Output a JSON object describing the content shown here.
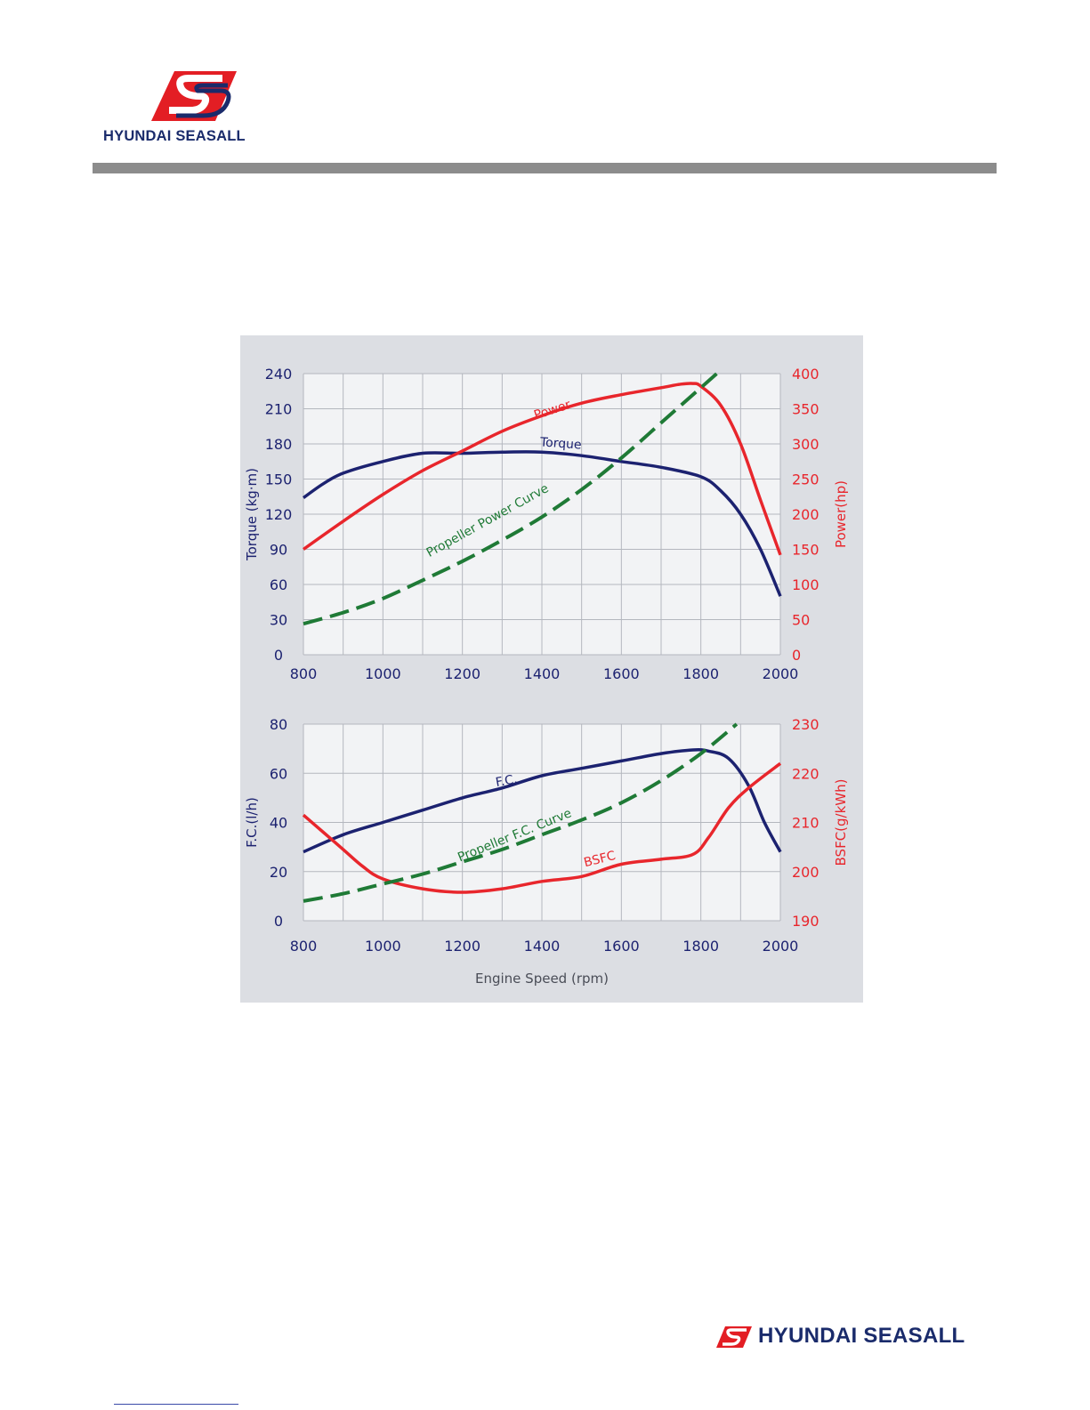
{
  "brand": {
    "name": "HYUNDAI SEASALL",
    "logo_icon": "s-wave-logo-icon",
    "colors": {
      "red": "#e31e24",
      "navy": "#1a2b6b",
      "rule_gray": "#8c8c8c"
    }
  },
  "chart_data": [
    {
      "type": "line",
      "title": "",
      "xlabel": "",
      "ylabel": "Torque (kg·m)",
      "y2label": "Power(hp)",
      "xlim": [
        800,
        2000
      ],
      "ylim": [
        0,
        240
      ],
      "y2lim": [
        0,
        400
      ],
      "x_ticks": [
        "800",
        "1000",
        "1200",
        "1400",
        "1600",
        "1800",
        "2000"
      ],
      "y_ticks": [
        "0",
        "30",
        "60",
        "90",
        "120",
        "150",
        "180",
        "210",
        "240"
      ],
      "y2_ticks": [
        "0",
        "50",
        "100",
        "150",
        "200",
        "250",
        "300",
        "350",
        "400"
      ],
      "grid": true,
      "series": [
        {
          "name": "Torque",
          "axis": "left",
          "color": "#1c2270",
          "dash": false,
          "x": [
            800,
            850,
            900,
            1000,
            1100,
            1200,
            1300,
            1400,
            1500,
            1600,
            1700,
            1800,
            1850,
            1900,
            1950,
            2000
          ],
          "values": [
            134,
            146,
            155,
            165,
            172,
            172,
            173,
            173,
            170,
            165,
            160,
            152,
            140,
            120,
            90,
            50
          ]
        },
        {
          "name": "Power",
          "axis": "right",
          "color": "#e8262c",
          "dash": false,
          "x": [
            800,
            900,
            1000,
            1100,
            1200,
            1300,
            1400,
            1500,
            1600,
            1700,
            1750,
            1780,
            1800,
            1850,
            1900,
            1950,
            2000
          ],
          "values": [
            150,
            190,
            228,
            262,
            290,
            318,
            340,
            358,
            370,
            380,
            385,
            386,
            382,
            355,
            300,
            220,
            142
          ]
        },
        {
          "name": "Propeller Power Curve",
          "axis": "right",
          "color": "#1f7a36",
          "dash": true,
          "x": [
            800,
            900,
            1000,
            1100,
            1200,
            1300,
            1400,
            1500,
            1600,
            1700,
            1800,
            1840
          ],
          "values": [
            44,
            60,
            80,
            106,
            133,
            163,
            196,
            235,
            280,
            330,
            380,
            400
          ]
        }
      ],
      "annotations": [
        "Power",
        "Torque",
        "Propeller Power Curve"
      ]
    },
    {
      "type": "line",
      "title": "",
      "xlabel": "Engine Speed (rpm)",
      "ylabel": "F.C.(l/h)",
      "y2label": "BSFC(g/kWh)",
      "xlim": [
        800,
        2000
      ],
      "ylim": [
        0,
        80
      ],
      "y2lim": [
        190,
        230
      ],
      "x_ticks": [
        "800",
        "1000",
        "1200",
        "1400",
        "1600",
        "1800",
        "2000"
      ],
      "y_ticks": [
        "0",
        "20",
        "40",
        "60",
        "80"
      ],
      "y2_ticks": [
        "190",
        "200",
        "210",
        "220",
        "230"
      ],
      "grid": true,
      "series": [
        {
          "name": "F.C.",
          "axis": "left",
          "color": "#1c2270",
          "dash": false,
          "x": [
            800,
            900,
            1000,
            1100,
            1200,
            1300,
            1400,
            1500,
            1600,
            1700,
            1780,
            1820,
            1870,
            1920,
            1960,
            2000
          ],
          "values": [
            28,
            35,
            40,
            45,
            50,
            54,
            59,
            62,
            65,
            68,
            69.5,
            69,
            66,
            55,
            40,
            28
          ]
        },
        {
          "name": "BSFC",
          "axis": "right",
          "color": "#e8262c",
          "dash": false,
          "x": [
            800,
            850,
            900,
            950,
            1000,
            1100,
            1200,
            1300,
            1400,
            1500,
            1600,
            1700,
            1780,
            1820,
            1870,
            1920,
            2000
          ],
          "values": [
            211.5,
            208,
            204.5,
            201,
            198.5,
            196.5,
            195.8,
            196.5,
            198,
            199,
            201.5,
            202.5,
            203.5,
            207,
            213,
            217,
            222
          ]
        },
        {
          "name": "Propeller F.C. Curve",
          "axis": "left",
          "color": "#1f7a36",
          "dash": true,
          "x": [
            800,
            900,
            1000,
            1100,
            1200,
            1300,
            1400,
            1500,
            1600,
            1700,
            1800,
            1890
          ],
          "values": [
            8,
            11,
            15,
            19,
            24,
            29,
            35,
            41,
            48,
            57,
            68,
            80
          ]
        }
      ],
      "annotations": [
        "F.C.",
        "Propeller F.C. Curve",
        "BSFC"
      ]
    }
  ]
}
